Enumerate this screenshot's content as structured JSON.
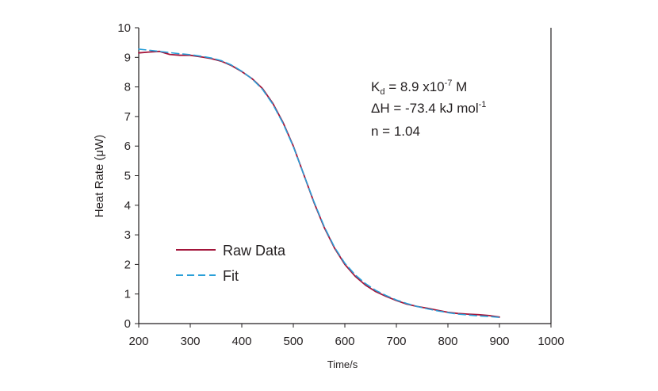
{
  "chart_data": {
    "type": "line",
    "xlabel": "Time/s",
    "ylabel": "Heat Rate (μW)",
    "xlim": [
      200,
      1000
    ],
    "ylim": [
      0,
      10
    ],
    "xticks": [
      "200",
      "300",
      "400",
      "500",
      "600",
      "700",
      "800",
      "900",
      "1000"
    ],
    "yticks": [
      "0",
      "1",
      "2",
      "3",
      "4",
      "5",
      "6",
      "7",
      "8",
      "9",
      "10"
    ],
    "grid": false,
    "legend": "lower-left",
    "series": [
      {
        "name": "Raw Data",
        "color": "#a3153a",
        "style": "solid",
        "x": [
          200,
          220,
          240,
          260,
          280,
          300,
          320,
          340,
          360,
          380,
          400,
          420,
          440,
          460,
          480,
          500,
          520,
          540,
          560,
          580,
          600,
          620,
          640,
          660,
          680,
          700,
          720,
          740,
          760,
          780,
          800,
          820,
          840,
          860,
          880,
          900
        ],
        "y": [
          9.15,
          9.18,
          9.2,
          9.1,
          9.07,
          9.07,
          9.02,
          8.96,
          8.87,
          8.72,
          8.52,
          8.28,
          7.95,
          7.45,
          6.8,
          6.0,
          5.05,
          4.1,
          3.25,
          2.55,
          2.0,
          1.6,
          1.3,
          1.08,
          0.92,
          0.78,
          0.66,
          0.58,
          0.52,
          0.45,
          0.38,
          0.34,
          0.32,
          0.3,
          0.27,
          0.22
        ]
      },
      {
        "name": "Fit",
        "color": "#2a9fd8",
        "style": "dashed",
        "x": [
          200,
          220,
          240,
          260,
          280,
          300,
          320,
          340,
          360,
          380,
          400,
          420,
          440,
          460,
          480,
          500,
          520,
          540,
          560,
          580,
          600,
          620,
          640,
          660,
          680,
          700,
          720,
          740,
          760,
          780,
          800,
          820,
          840,
          860,
          880,
          900
        ],
        "y": [
          9.28,
          9.24,
          9.2,
          9.16,
          9.12,
          9.09,
          9.04,
          8.98,
          8.89,
          8.74,
          8.53,
          8.27,
          7.92,
          7.42,
          6.77,
          5.98,
          5.05,
          4.12,
          3.28,
          2.58,
          2.04,
          1.65,
          1.35,
          1.12,
          0.95,
          0.8,
          0.68,
          0.58,
          0.5,
          0.43,
          0.37,
          0.32,
          0.29,
          0.26,
          0.24,
          0.21
        ]
      }
    ],
    "annotations": {
      "kd_prefix": "K",
      "kd_sub": "d",
      "kd_value": " = 8.9 x10",
      "kd_exp": "-7",
      "kd_unit": " M",
      "dh_value": "ΔH = -73.4 kJ mol",
      "dh_exp": "-1",
      "n_value": "n = 1.04"
    }
  }
}
